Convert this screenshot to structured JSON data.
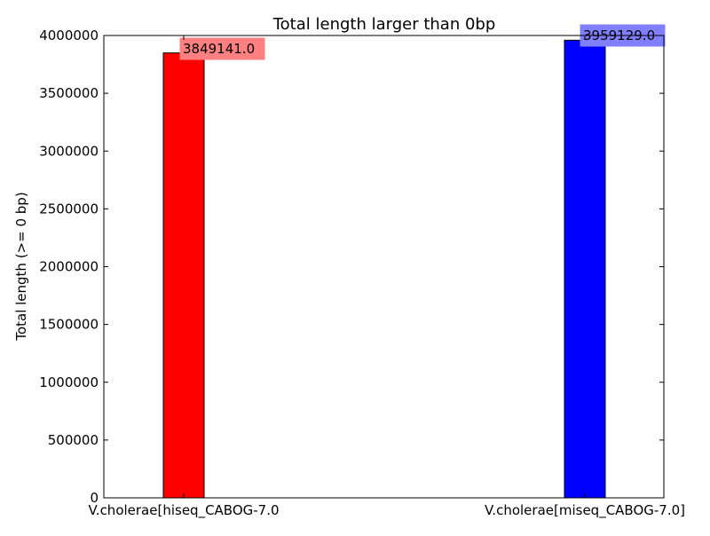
{
  "chart_data": {
    "type": "bar",
    "title": "Total length larger than 0bp",
    "xlabel": "",
    "ylabel": "Total length (>= 0 bp)",
    "categories": [
      "V.cholerae[hiseq_CABOG-7.0",
      "V.cholerae[miseq_CABOG-7.0]"
    ],
    "values": [
      3849141,
      3959129
    ],
    "value_labels": [
      "3849141.0",
      "3959129.0"
    ],
    "colors": [
      "#ff0000",
      "#0000ff"
    ],
    "ylim": [
      0,
      4000000
    ],
    "yticks": [
      0,
      500000,
      1000000,
      1500000,
      2000000,
      2500000,
      3000000,
      3500000,
      4000000
    ],
    "ytick_labels": [
      "0",
      "500000",
      "1000000",
      "1500000",
      "2000000",
      "2500000",
      "3000000",
      "3500000",
      "4000000"
    ],
    "grid": false,
    "legend": "none"
  }
}
